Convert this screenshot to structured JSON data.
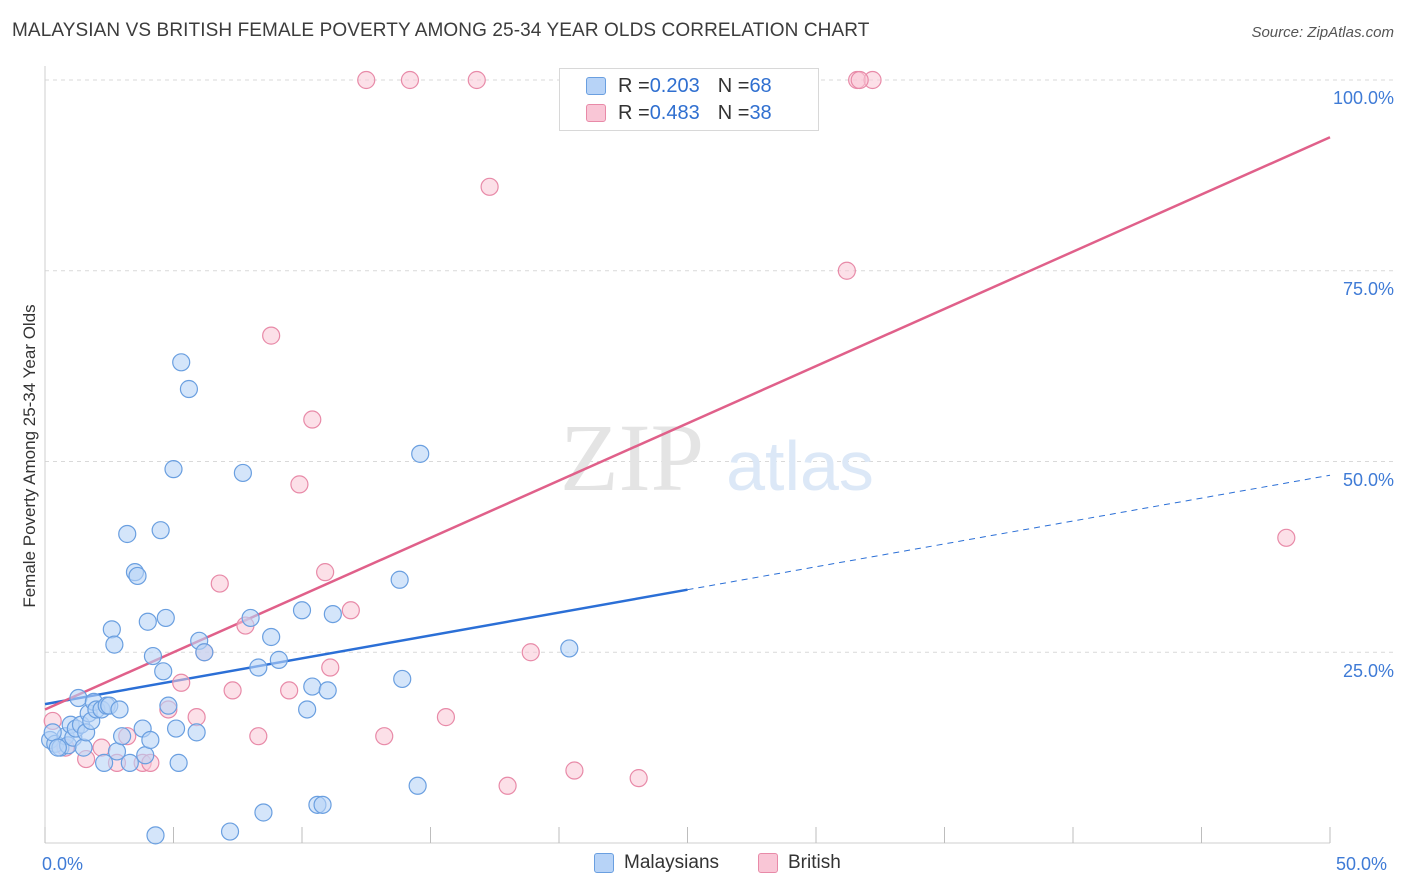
{
  "title": "MALAYSIAN VS BRITISH FEMALE POVERTY AMONG 25-34 YEAR OLDS CORRELATION CHART",
  "source": "Source: ZipAtlas.com",
  "watermark": {
    "zip": "ZIP",
    "atlas": "atlas"
  },
  "legend_top": [
    {
      "r_label": "R = ",
      "r_value": "0.203",
      "n_label": "N = ",
      "n_value": "68"
    },
    {
      "r_label": "R = ",
      "r_value": "0.483",
      "n_label": "N = ",
      "n_value": "38"
    }
  ],
  "legend_bottom": [
    "Malaysians",
    "British"
  ],
  "colors": {
    "malaysians_fill": "#b7d3f7",
    "malaysians_stroke": "#6a9fe0",
    "malaysians_line": "#2b6fd6",
    "british_fill": "#f9c6d6",
    "british_stroke": "#e88aa8",
    "british_line": "#e0608a",
    "tick_label": "#3f7bd6",
    "grid": "#d9d9d9"
  },
  "chart_data": {
    "type": "scatter",
    "xlabel": "",
    "ylabel": "Female Poverty Among 25-34 Year Olds",
    "xlim": [
      0,
      50
    ],
    "ylim": [
      0,
      100
    ],
    "x_tick_labels": [
      "0.0%",
      "50.0%"
    ],
    "y_tick_labels": [
      "25.0%",
      "50.0%",
      "75.0%",
      "100.0%"
    ],
    "y_ticks": [
      25,
      50,
      75,
      100
    ],
    "grid": "horizontal dashed",
    "series": [
      {
        "name": "Malaysians",
        "points": [
          [
            0.2,
            13.5
          ],
          [
            0.4,
            13
          ],
          [
            0.6,
            12.5
          ],
          [
            0.8,
            14
          ],
          [
            0.9,
            12.8
          ],
          [
            1.0,
            15.5
          ],
          [
            1.1,
            13.8
          ],
          [
            1.2,
            15
          ],
          [
            1.3,
            19
          ],
          [
            1.4,
            15.5
          ],
          [
            1.5,
            12.5
          ],
          [
            1.6,
            14.5
          ],
          [
            1.7,
            17
          ],
          [
            1.8,
            16
          ],
          [
            1.9,
            18.5
          ],
          [
            2.0,
            17.5
          ],
          [
            2.2,
            17.5
          ],
          [
            2.3,
            10.5
          ],
          [
            2.4,
            18
          ],
          [
            2.5,
            18
          ],
          [
            2.6,
            28
          ],
          [
            2.7,
            26
          ],
          [
            2.8,
            12
          ],
          [
            2.9,
            17.5
          ],
          [
            3.0,
            14
          ],
          [
            3.2,
            40.5
          ],
          [
            3.3,
            10.5
          ],
          [
            3.5,
            35.5
          ],
          [
            3.6,
            35
          ],
          [
            3.8,
            15
          ],
          [
            3.9,
            11.5
          ],
          [
            4.0,
            29
          ],
          [
            4.1,
            13.5
          ],
          [
            4.2,
            24.5
          ],
          [
            4.3,
            1
          ],
          [
            4.5,
            41
          ],
          [
            4.6,
            22.5
          ],
          [
            4.7,
            29.5
          ],
          [
            4.8,
            18
          ],
          [
            5.0,
            49
          ],
          [
            5.1,
            15
          ],
          [
            5.2,
            10.5
          ],
          [
            5.3,
            63
          ],
          [
            5.6,
            59.5
          ],
          [
            5.9,
            14.5
          ],
          [
            6.0,
            26.5
          ],
          [
            6.2,
            25
          ],
          [
            7.2,
            1.5
          ],
          [
            7.7,
            48.5
          ],
          [
            8.0,
            29.5
          ],
          [
            8.3,
            23
          ],
          [
            8.5,
            4
          ],
          [
            8.8,
            27
          ],
          [
            9.1,
            24
          ],
          [
            10.0,
            30.5
          ],
          [
            10.2,
            17.5
          ],
          [
            10.4,
            20.5
          ],
          [
            10.6,
            5
          ],
          [
            10.8,
            5
          ],
          [
            11.0,
            20
          ],
          [
            11.2,
            30
          ],
          [
            13.8,
            34.5
          ],
          [
            13.9,
            21.5
          ],
          [
            14.5,
            7.5
          ],
          [
            14.6,
            51
          ],
          [
            20.4,
            25.5
          ],
          [
            0.3,
            14.5
          ],
          [
            0.5,
            12.5
          ]
        ]
      },
      {
        "name": "British",
        "points": [
          [
            0.3,
            16
          ],
          [
            0.8,
            12.5
          ],
          [
            1.6,
            11
          ],
          [
            2.2,
            12.5
          ],
          [
            2.8,
            10.5
          ],
          [
            3.2,
            14
          ],
          [
            3.8,
            10.5
          ],
          [
            4.1,
            10.5
          ],
          [
            4.8,
            17.5
          ],
          [
            5.3,
            21
          ],
          [
            5.9,
            16.5
          ],
          [
            6.2,
            25
          ],
          [
            6.8,
            34
          ],
          [
            7.3,
            20
          ],
          [
            7.8,
            28.5
          ],
          [
            8.3,
            14
          ],
          [
            8.8,
            66.5
          ],
          [
            9.5,
            20
          ],
          [
            9.9,
            47
          ],
          [
            10.4,
            55.5
          ],
          [
            10.9,
            35.5
          ],
          [
            11.1,
            23
          ],
          [
            11.9,
            30.5
          ],
          [
            12.5,
            100
          ],
          [
            13.2,
            14
          ],
          [
            14.2,
            100
          ],
          [
            15.6,
            16.5
          ],
          [
            16.8,
            100
          ],
          [
            17.3,
            86
          ],
          [
            18.0,
            7.5
          ],
          [
            18.9,
            25
          ],
          [
            20.6,
            9.5
          ],
          [
            23.1,
            8.5
          ],
          [
            31.2,
            75
          ],
          [
            31.6,
            100
          ],
          [
            32.2,
            100
          ],
          [
            31.7,
            100
          ],
          [
            48.3,
            40
          ]
        ]
      }
    ],
    "trendlines": [
      {
        "name": "Malaysians",
        "solid_x": [
          0,
          25
        ],
        "dashed_x": [
          25,
          50
        ],
        "y_at_x0": 18.2,
        "slope": 0.6
      },
      {
        "name": "British",
        "x": [
          0,
          50
        ],
        "y_at_x0": 17.5,
        "slope": 1.5
      }
    ]
  }
}
